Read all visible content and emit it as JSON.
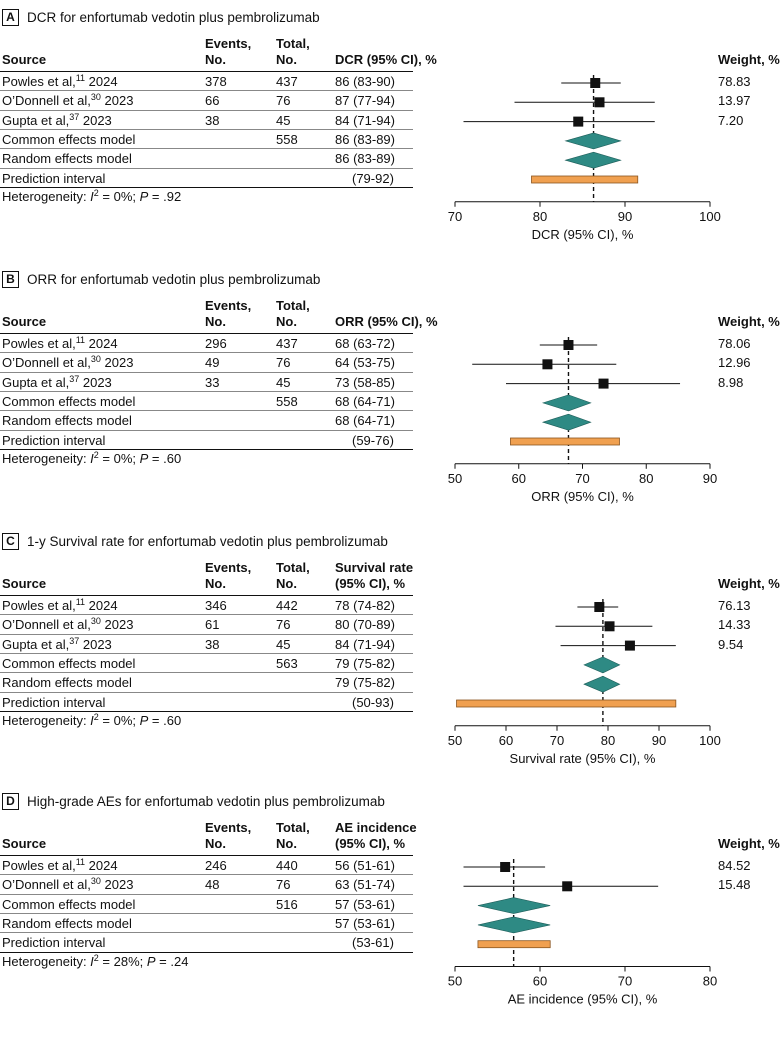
{
  "chart_data": [
    {
      "type": "forest",
      "panel": "A",
      "title": "DCR for enfortumab vedotin plus pembrolizumab",
      "columns": {
        "source": "Source",
        "events": [
          "Events,",
          "No."
        ],
        "total": [
          "Total,",
          "No."
        ],
        "estimate": [
          "",
          "DCR (95% CI), %"
        ],
        "weight": "Weight, %"
      },
      "studies": [
        {
          "name": "Powles et al,",
          "ref": "11",
          "year": "2024",
          "events": "378",
          "total": "437",
          "estimate_text": "86 (83-90)",
          "est": 86.5,
          "lo": 82.5,
          "hi": 89.5,
          "weight": "78.83"
        },
        {
          "name": "O’Donnell et al,",
          "ref": "30",
          "year": "2023",
          "events": "66",
          "total": "76",
          "estimate_text": "87 (77-94)",
          "est": 87.0,
          "lo": 77.0,
          "hi": 93.5,
          "weight": "13.97"
        },
        {
          "name": "Gupta et al,",
          "ref": "37",
          "year": "2023",
          "events": "38",
          "total": "45",
          "estimate_text": "84 (71-94)",
          "est": 84.5,
          "lo": 71.0,
          "hi": 93.5,
          "weight": "7.20"
        }
      ],
      "common": {
        "label": "Common effects model",
        "total": "558",
        "estimate_text": "86 (83-89)",
        "est": 86.3,
        "lo": 83.0,
        "hi": 89.5
      },
      "random": {
        "label": "Random effects model",
        "estimate_text": "86 (83-89)",
        "est": 86.3,
        "lo": 83.0,
        "hi": 89.5
      },
      "prediction": {
        "label": "Prediction interval",
        "estimate_text": "(79-92)",
        "lo": 79.0,
        "hi": 91.5
      },
      "heterogeneity": {
        "prefix": "Heterogeneity: ",
        "i": "I",
        "sq": "2",
        "rest": " = 0%; ",
        "p": "P",
        "pval": " = .92"
      },
      "xlabel": "DCR (95% CI), %",
      "xlim": [
        70,
        100
      ],
      "xticks": [
        70,
        80,
        90,
        100
      ],
      "refline": 86.3
    },
    {
      "type": "forest",
      "panel": "B",
      "title": "ORR for enfortumab vedotin plus pembrolizumab",
      "columns": {
        "source": "Source",
        "events": [
          "Events,",
          "No."
        ],
        "total": [
          "Total,",
          "No."
        ],
        "estimate": [
          "",
          "ORR (95% CI), %"
        ],
        "weight": "Weight, %"
      },
      "studies": [
        {
          "name": "Powles et al,",
          "ref": "11",
          "year": "2024",
          "events": "296",
          "total": "437",
          "estimate_text": "68 (63-72)",
          "est": 67.8,
          "lo": 63.3,
          "hi": 72.3,
          "weight": "78.06"
        },
        {
          "name": "O’Donnell et al,",
          "ref": "30",
          "year": "2023",
          "events": "49",
          "total": "76",
          "estimate_text": "64 (53-75)",
          "est": 64.5,
          "lo": 52.7,
          "hi": 75.3,
          "weight": "12.96"
        },
        {
          "name": "Gupta et al,",
          "ref": "37",
          "year": "2023",
          "events": "33",
          "total": "45",
          "estimate_text": "73 (58-85)",
          "est": 73.3,
          "lo": 58.0,
          "hi": 85.3,
          "weight": "8.98"
        }
      ],
      "common": {
        "label": "Common effects model",
        "total": "558",
        "estimate_text": "68 (64-71)",
        "est": 67.8,
        "lo": 63.8,
        "hi": 71.3
      },
      "random": {
        "label": "Random effects model",
        "estimate_text": "68 (64-71)",
        "est": 67.8,
        "lo": 63.8,
        "hi": 71.3
      },
      "prediction": {
        "label": "Prediction interval",
        "estimate_text": "(59-76)",
        "lo": 58.7,
        "hi": 75.8
      },
      "heterogeneity": {
        "prefix": "Heterogeneity: ",
        "i": "I",
        "sq": "2",
        "rest": " = 0%; ",
        "p": "P",
        "pval": " = .60"
      },
      "xlabel": "ORR (95% CI), %",
      "xlim": [
        50,
        90
      ],
      "xticks": [
        50,
        60,
        70,
        80,
        90
      ],
      "refline": 67.8
    },
    {
      "type": "forest",
      "panel": "C",
      "title": "1-y Survival rate for enfortumab vedotin plus pembrolizumab",
      "columns": {
        "source": "Source",
        "events": [
          "Events,",
          "No."
        ],
        "total": [
          "Total,",
          "No."
        ],
        "estimate": [
          "Survival rate",
          "(95% CI), %"
        ],
        "weight": "Weight, %"
      },
      "studies": [
        {
          "name": "Powles et al,",
          "ref": "11",
          "year": "2024",
          "events": "346",
          "total": "442",
          "estimate_text": "78 (74-82)",
          "est": 78.3,
          "lo": 74.0,
          "hi": 82.0,
          "weight": "76.13"
        },
        {
          "name": "O’Donnell et al,",
          "ref": "30",
          "year": "2023",
          "events": "61",
          "total": "76",
          "estimate_text": "80 (70-89)",
          "est": 80.3,
          "lo": 69.7,
          "hi": 88.7,
          "weight": "14.33"
        },
        {
          "name": "Gupta et al,",
          "ref": "37",
          "year": "2023",
          "events": "38",
          "total": "45",
          "estimate_text": "84 (71-94)",
          "est": 84.3,
          "lo": 70.7,
          "hi": 93.3,
          "weight": "9.54"
        }
      ],
      "common": {
        "label": "Common effects model",
        "total": "563",
        "estimate_text": "79 (75-82)",
        "est": 79.0,
        "lo": 75.3,
        "hi": 82.3
      },
      "random": {
        "label": "Random effects model",
        "estimate_text": "79 (75-82)",
        "est": 79.0,
        "lo": 75.3,
        "hi": 82.3
      },
      "prediction": {
        "label": "Prediction interval",
        "estimate_text": "(50-93)",
        "lo": 50.3,
        "hi": 93.3
      },
      "heterogeneity": {
        "prefix": "Heterogeneity: ",
        "i": "I",
        "sq": "2",
        "rest": " = 0%; ",
        "p": "P",
        "pval": " = .60"
      },
      "xlabel": "Survival rate (95% CI), %",
      "xlim": [
        50,
        100
      ],
      "xticks": [
        50,
        60,
        70,
        80,
        90,
        100
      ],
      "refline": 79.0
    },
    {
      "type": "forest",
      "panel": "D",
      "title": "High-grade AEs for enfortumab vedotin plus pembrolizumab",
      "columns": {
        "source": "Source",
        "events": [
          "Events,",
          "No."
        ],
        "total": [
          "Total,",
          "No."
        ],
        "estimate": [
          "AE incidence",
          "(95% CI), %"
        ],
        "weight": "Weight, %"
      },
      "studies": [
        {
          "name": "Powles et al,",
          "ref": "11",
          "year": "2024",
          "events": "246",
          "total": "440",
          "estimate_text": "56 (51-61)",
          "est": 55.9,
          "lo": 51.0,
          "hi": 60.6,
          "weight": "84.52"
        },
        {
          "name": "O’Donnell et al,",
          "ref": "30",
          "year": "2023",
          "events": "48",
          "total": "76",
          "estimate_text": "63 (51-74)",
          "est": 63.2,
          "lo": 51.0,
          "hi": 73.9,
          "weight": "15.48"
        }
      ],
      "common": {
        "label": "Common effects model",
        "total": "516",
        "estimate_text": "57 (53-61)",
        "est": 56.9,
        "lo": 52.7,
        "hi": 61.2
      },
      "random": {
        "label": "Random effects model",
        "estimate_text": "57 (53-61)",
        "est": 56.9,
        "lo": 52.7,
        "hi": 61.2
      },
      "prediction": {
        "label": "Prediction interval",
        "estimate_text": "(53-61)",
        "lo": 52.7,
        "hi": 61.2
      },
      "heterogeneity": {
        "prefix": "Heterogeneity: ",
        "i": "I",
        "sq": "2",
        "rest": " = 28%; ",
        "p": "P",
        "pval": " = .24"
      },
      "xlabel": "AE incidence (95% CI), %",
      "xlim": [
        50,
        80
      ],
      "xticks": [
        50,
        60,
        70,
        80
      ],
      "refline": 56.9
    }
  ],
  "colors": {
    "diamond": "#2e8a84",
    "prediction_fill": "#f0a050",
    "ink": "#111111",
    "rule": "#888888"
  }
}
